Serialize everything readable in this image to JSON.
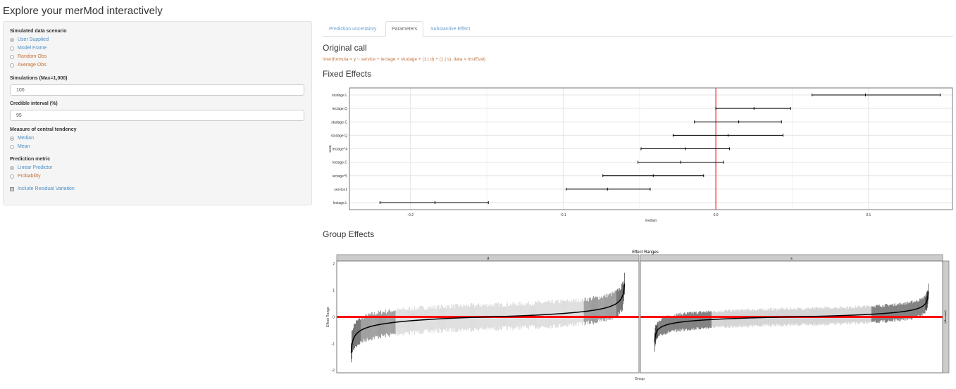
{
  "app_title": "Explore your merMod interactively",
  "sidebar": {
    "scenario": {
      "label": "Simulated data scenario",
      "options": [
        "User Supplied",
        "Model Frame",
        "Random Obs",
        "Average Obs"
      ],
      "selected": "User Supplied"
    },
    "simulations": {
      "label": "Simulations (Max=1,000)",
      "value": "100"
    },
    "interval": {
      "label": "Credible interval (%)",
      "value": "95"
    },
    "central": {
      "label": "Measure of central tendency",
      "options": [
        "Median",
        "Mean"
      ],
      "selected": "Median"
    },
    "metric": {
      "label": "Prediction metric",
      "options": [
        "Linear Predictor",
        "Probability"
      ],
      "selected": "Linear Predictor"
    },
    "residual": {
      "label": "Include Residual Variation",
      "checked": true
    }
  },
  "tabs": [
    {
      "label": "Prediction uncertainty"
    },
    {
      "label": "Parameters",
      "active": true
    },
    {
      "label": "Substantive Effect"
    }
  ],
  "original_call": {
    "heading": "Original call",
    "text": "lmer(formula = y ~ service + lectage + studage + (1 | d) + (1 | s), data = InstEval)"
  },
  "fixed_heading": "Fixed Effects",
  "group_heading": "Group Effects",
  "colors": {
    "zero_line": "#ff0000",
    "link": "#4a8fc9",
    "accent": "#c0703a"
  },
  "chart_data": [
    {
      "type": "errorbar",
      "xlabel": "median",
      "ylabel": "term",
      "xlim": [
        -0.24,
        0.155
      ],
      "xticks": [
        "-0.2",
        "-0.1",
        "0.0",
        "0.1"
      ],
      "xtick_values": [
        -0.2,
        -0.1,
        0,
        0.1
      ],
      "grid": true,
      "ref_line": 0,
      "terms": [
        "studage.L",
        "lectage.Q",
        "studage.C",
        "studage.Q",
        "lectage^4",
        "lectage.C",
        "lectage^5",
        "service1",
        "lectage.L"
      ],
      "median": [
        0.098,
        0.025,
        0.015,
        0.008,
        -0.02,
        -0.023,
        -0.041,
        -0.071,
        -0.184
      ],
      "lower": [
        0.063,
        0.0,
        -0.014,
        -0.028,
        -0.049,
        -0.051,
        -0.074,
        -0.098,
        -0.22
      ],
      "upper": [
        0.147,
        0.049,
        0.043,
        0.044,
        0.009,
        0.005,
        -0.008,
        -0.043,
        -0.149
      ]
    },
    {
      "type": "errorbar",
      "title": "Effect Ranges",
      "xlabel": "Group",
      "ylabel": "Effect Range",
      "ylim": [
        -2.1,
        2.1
      ],
      "yticks": [
        "-2",
        "-1",
        "0",
        "1",
        "2"
      ],
      "ytick_values": [
        -2,
        -1,
        0,
        1,
        2
      ],
      "ref_line": 0,
      "row_strip": "(Intercept)",
      "facets": [
        {
          "name": "d",
          "median_range": [
            -1.35,
            1.25
          ],
          "max_interval": [
            -1.95,
            1.9
          ]
        },
        {
          "name": "s",
          "median_range": [
            -0.95,
            0.95
          ],
          "max_interval": [
            -1.15,
            1.2
          ]
        }
      ]
    }
  ]
}
